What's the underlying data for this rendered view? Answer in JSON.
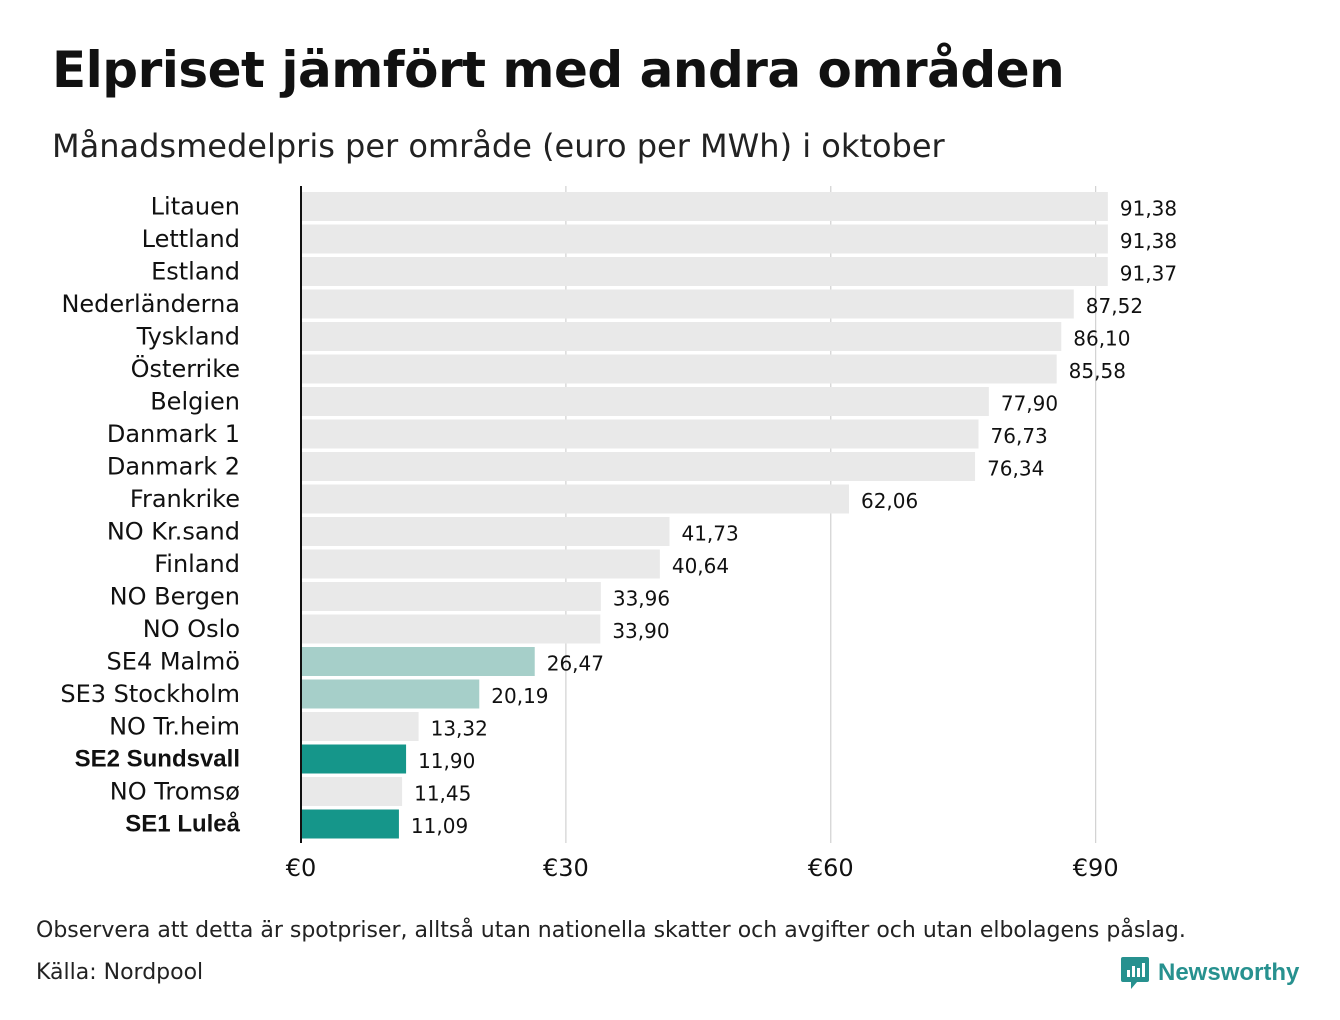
{
  "header": {
    "title": "Elpriset jämfört med andra områden",
    "subtitle": "Månadsmedelpris per område (euro per MWh) i oktober"
  },
  "footer": {
    "note": "Observera att detta är spotpriser, alltså utan nationella skatter och avgifter och utan elbolagens påslag.",
    "source": "Källa: Nordpool",
    "brand": "Newsworthy"
  },
  "colors": {
    "default_bar": "#e9e9e9",
    "light_teal_bar": "#a6cfc9",
    "highlight_bar": "#15968a",
    "brand": "#27918f",
    "gridline": "#c8c8c8",
    "axis": "#111111"
  },
  "chart_data": {
    "type": "bar",
    "orientation": "horizontal",
    "title": "Elpriset jämfört med andra områden",
    "subtitle": "Månadsmedelpris per område (euro per MWh) i oktober",
    "xlim": [
      0,
      100
    ],
    "xticks": [
      0,
      30,
      60,
      90
    ],
    "xtick_labels": [
      "€0",
      "€30",
      "€60",
      "€90"
    ],
    "grid": "vertical",
    "categories": [
      "Litauen",
      "Lettland",
      "Estland",
      "Nederländerna",
      "Tyskland",
      "Österrike",
      "Belgien",
      "Danmark 1",
      "Danmark 2",
      "Frankrike",
      "NO Kr.sand",
      "Finland",
      "NO Bergen",
      "NO Oslo",
      "SE4 Malmö",
      "SE3 Stockholm",
      "NO Tr.heim",
      "SE2 Sundsvall",
      "NO Tromsø",
      "SE1 Luleå"
    ],
    "values": [
      91.38,
      91.38,
      91.37,
      87.52,
      86.1,
      85.58,
      77.9,
      76.73,
      76.34,
      62.06,
      41.73,
      40.64,
      33.96,
      33.9,
      26.47,
      20.19,
      13.32,
      11.9,
      11.45,
      11.09
    ],
    "value_labels": [
      "91,38",
      "91,38",
      "91,37",
      "87,52",
      "86,10",
      "85,58",
      "77,90",
      "76,73",
      "76,34",
      "62,06",
      "41,73",
      "40,64",
      "33,96",
      "33,90",
      "26,47",
      "20,19",
      "13,32",
      "11,90",
      "11,45",
      "11,09"
    ],
    "bar_colors": [
      "#e9e9e9",
      "#e9e9e9",
      "#e9e9e9",
      "#e9e9e9",
      "#e9e9e9",
      "#e9e9e9",
      "#e9e9e9",
      "#e9e9e9",
      "#e9e9e9",
      "#e9e9e9",
      "#e9e9e9",
      "#e9e9e9",
      "#e9e9e9",
      "#e9e9e9",
      "#a6cfc9",
      "#a6cfc9",
      "#e9e9e9",
      "#15968a",
      "#e9e9e9",
      "#15968a"
    ],
    "bold_categories": [
      "SE2 Sundsvall",
      "SE1 Luleå"
    ]
  }
}
